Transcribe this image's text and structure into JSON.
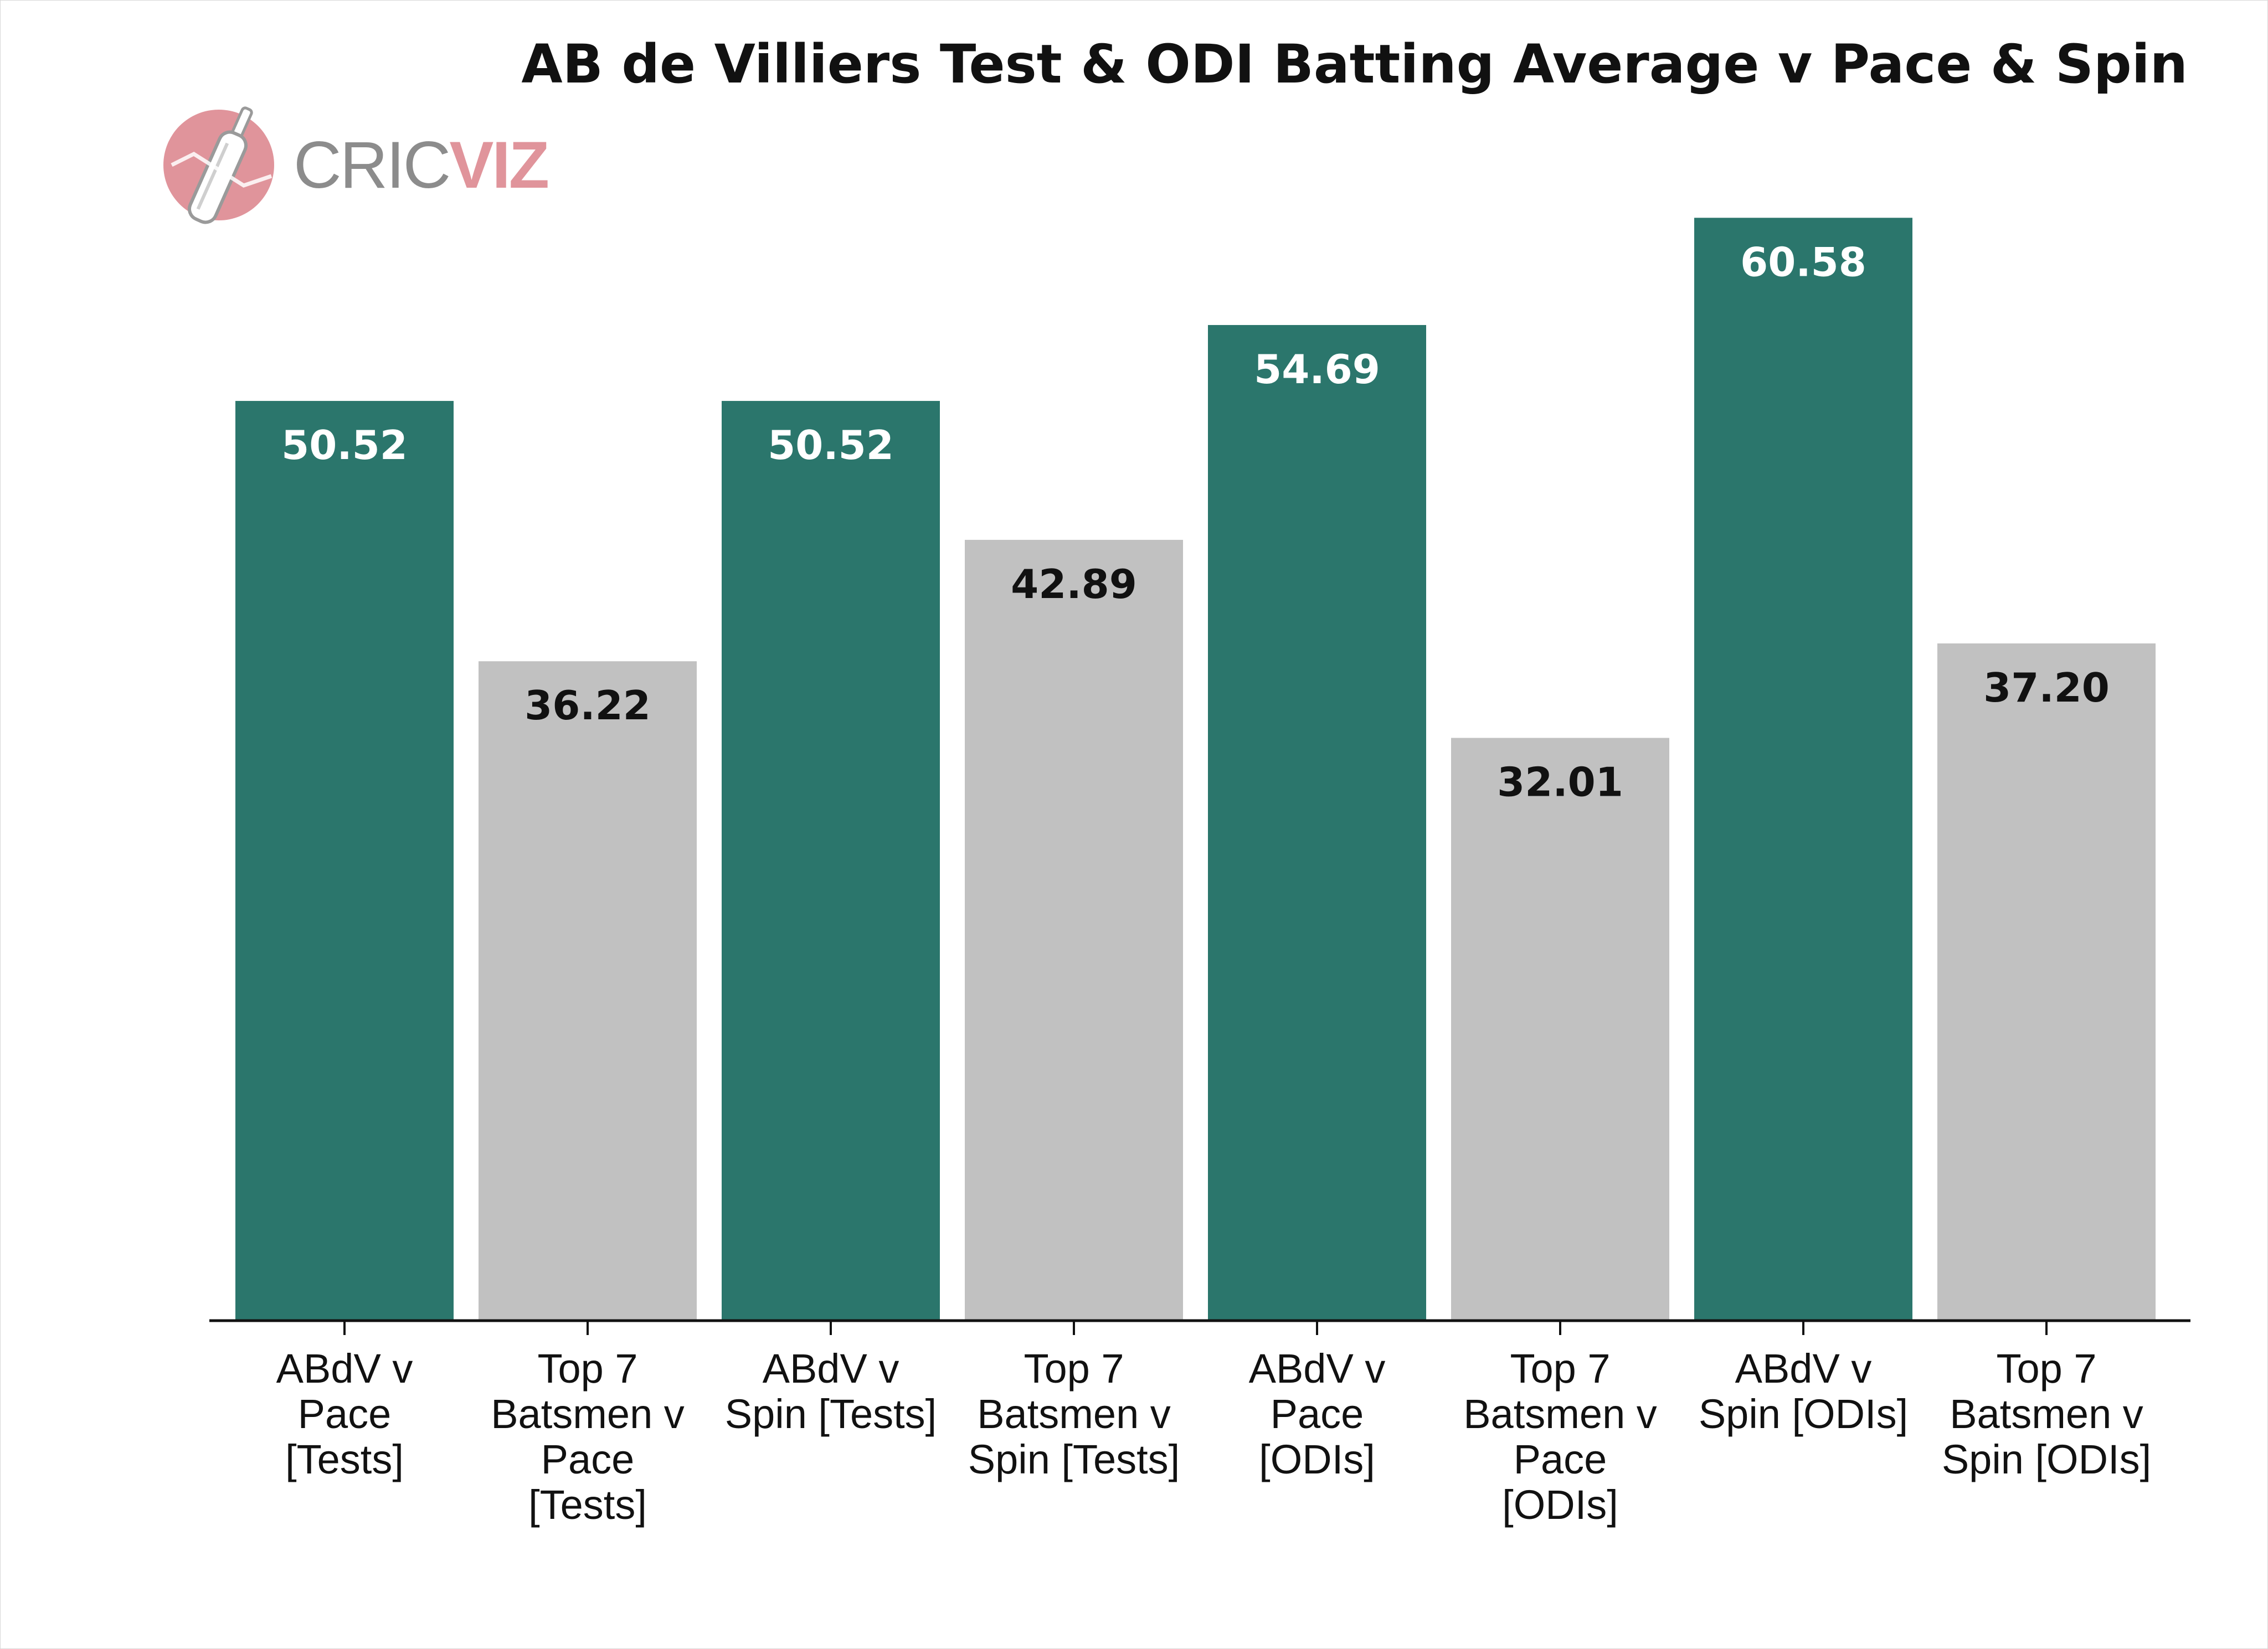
{
  "chart_data": {
    "type": "bar",
    "title": "AB de Villiers Test & ODI Batting Average v Pace & Spin",
    "xlabel": "",
    "ylabel": "",
    "ylim": [
      0,
      65
    ],
    "grid": false,
    "legend": "none",
    "categories": [
      "ABdV v Pace [Tests]",
      "Top 7 Batsmen v Pace [Tests]",
      "ABdV v Spin [Tests]",
      "Top 7 Batsmen v Spin [Tests]",
      "ABdV v Pace [ODIs]",
      "Top 7 Batsmen v Pace [ODIs]",
      "ABdV v Spin [ODIs]",
      "Top 7 Batsmen v Spin [ODIs]"
    ],
    "category_lines": [
      [
        "ABdV v",
        "Pace",
        "[Tests]"
      ],
      [
        "Top 7",
        "Batsmen v",
        "Pace",
        "[Tests]"
      ],
      [
        "ABdV v",
        "Spin [Tests]"
      ],
      [
        "Top 7",
        "Batsmen v",
        "Spin [Tests]"
      ],
      [
        "ABdV v",
        "Pace",
        "[ODIs]"
      ],
      [
        "Top 7",
        "Batsmen v",
        "Pace",
        "[ODIs]"
      ],
      [
        "ABdV v",
        "Spin [ODIs]"
      ],
      [
        "Top 7",
        "Batsmen v",
        "Spin [ODIs]"
      ]
    ],
    "values": [
      50.52,
      36.22,
      50.52,
      42.89,
      54.69,
      32.01,
      60.58,
      37.2
    ],
    "value_labels": [
      "50.52",
      "36.22",
      "50.52",
      "42.89",
      "54.69",
      "32.01",
      "60.58",
      "37.20"
    ],
    "bar_colors": [
      "#2b766c",
      "#c1c1c1",
      "#2b766c",
      "#c1c1c1",
      "#2b766c",
      "#c1c1c1",
      "#2b766c",
      "#c1c1c1"
    ],
    "label_colors": [
      "#ffffff",
      "#111111",
      "#ffffff",
      "#111111",
      "#ffffff",
      "#111111",
      "#ffffff",
      "#111111"
    ]
  },
  "logo": {
    "text_part1": "CRIC",
    "text_part2": "VIZ",
    "gray": "#8c8c8c",
    "pink": "#e0949b",
    "icon": "cricket-bat-icon"
  }
}
